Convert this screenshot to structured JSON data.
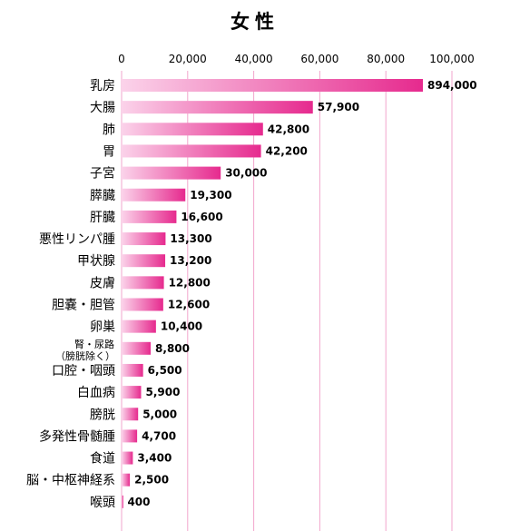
{
  "chart_data": {
    "type": "bar",
    "orientation": "horizontal",
    "title": "女性",
    "xlabel": "",
    "ylabel": "",
    "xlim": [
      0,
      100000
    ],
    "x_ticks": [
      0,
      20000,
      40000,
      60000,
      80000,
      100000
    ],
    "x_tick_labels": [
      "0",
      "20,000",
      "40,000",
      "60,000",
      "80,000",
      "100,000"
    ],
    "grid": true,
    "axis_break": true,
    "bar_gradient": [
      "#fbd3ea",
      "#e62a8e"
    ],
    "categories": [
      [
        "乳房"
      ],
      [
        "大腸"
      ],
      [
        "肺"
      ],
      [
        "胃"
      ],
      [
        "子宮"
      ],
      [
        "膵臓"
      ],
      [
        "肝臓"
      ],
      [
        "悪性リンパ腫"
      ],
      [
        "甲状腺"
      ],
      [
        "皮膚"
      ],
      [
        "胆嚢・胆管"
      ],
      [
        "卵巣"
      ],
      [
        "腎・尿路",
        "（膀胱除く）"
      ],
      [
        "口腔・咽頭"
      ],
      [
        "白血病"
      ],
      [
        "膀胱"
      ],
      [
        "多発性骨髄腫"
      ],
      [
        "食道"
      ],
      [
        "脳・中枢神経系"
      ],
      [
        "喉頭"
      ]
    ],
    "values": [
      894000,
      57900,
      42800,
      42200,
      30000,
      19300,
      16600,
      13300,
      13200,
      12800,
      12600,
      10400,
      8800,
      6500,
      5900,
      5000,
      4700,
      3400,
      2500,
      400
    ],
    "value_labels": [
      "894,000",
      "57,900",
      "42,800",
      "42,200",
      "30,000",
      "19,300",
      "16,600",
      "13,300",
      "13,200",
      "12,800",
      "12,600",
      "10,400",
      "8,800",
      "6,500",
      "5,900",
      "5,000",
      "4,700",
      "3,400",
      "2,500",
      "400"
    ]
  }
}
